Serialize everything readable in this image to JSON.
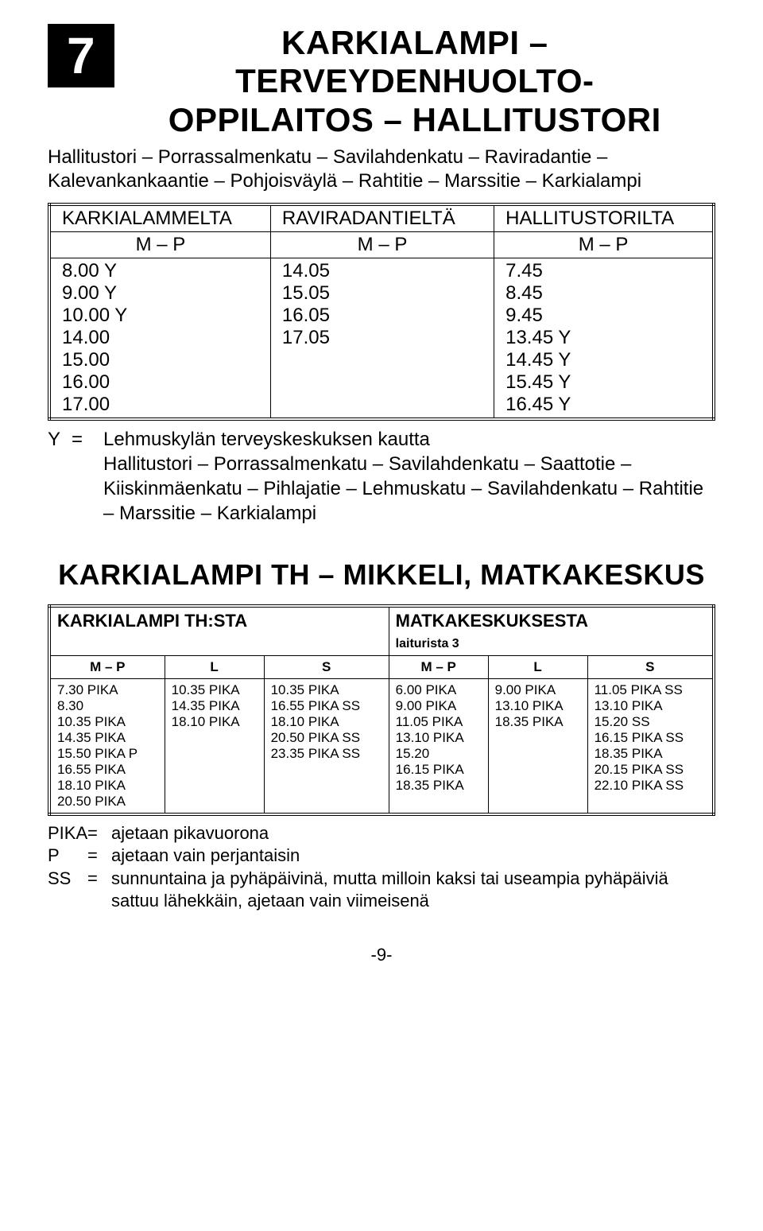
{
  "route": {
    "number": "7",
    "title_line1": "KARKIALAMPI – TERVEYDENHUOLTO-",
    "title_line2": "OPPILAITOS – HALLITUSTORI",
    "description": "Hallitustori – Porrassalmenkatu – Savilahdenkatu – Raviradantie – Kalevankankaantie – Pohjoisväylä – Rahtitie – Marssitie – Karkialampi"
  },
  "table1": {
    "headers": [
      "KARKIALAMMELTA",
      "RAVIRADANTIELTÄ",
      "HALLITUSTORILTA"
    ],
    "subheaders": [
      "M – P",
      "M – P",
      "M – P"
    ],
    "col1": [
      "8.00 Y",
      "9.00 Y",
      "10.00 Y",
      "14.00",
      "15.00",
      "16.00",
      "17.00"
    ],
    "col2": [
      "14.05",
      "15.05",
      "16.05",
      "17.05"
    ],
    "col3": [
      "7.45",
      "8.45",
      "9.45",
      "13.45 Y",
      "14.45 Y",
      "15.45 Y",
      "16.45 Y"
    ]
  },
  "note1": {
    "key": "Y",
    "eq": "=",
    "line1": "Lehmuskylän terveyskeskuksen kautta",
    "line2": "Hallitustori – Porrassalmenkatu – Savilahdenkatu – Saattotie – Kiiskinmäenkatu – Pihlajatie – Lehmuskatu – Savilahdenkatu – Rahtitie – Marssitie – Karkialampi"
  },
  "section2": {
    "title": "KARKIALAMPI TH – MIKKELI, MATKAKESKUS",
    "group1": "KARKIALAMPI TH:STA",
    "group2": "MATKAKESKUKSESTA",
    "group2_sub": "laiturista 3",
    "colheads": [
      "M – P",
      "L",
      "S",
      "M – P",
      "L",
      "S"
    ],
    "rows": {
      "c1": [
        "7.30 PIKA",
        "8.30",
        "10.35 PIKA",
        "14.35 PIKA",
        "15.50 PIKA P",
        "16.55 PIKA",
        "18.10 PIKA",
        "20.50 PIKA"
      ],
      "c2": [
        "10.35 PIKA",
        "14.35 PIKA",
        "18.10 PIKA"
      ],
      "c3": [
        "10.35 PIKA",
        "16.55 PIKA SS",
        "18.10 PIKA",
        "20.50 PIKA SS",
        "23.35 PIKA SS"
      ],
      "c4": [
        "6.00 PIKA",
        "9.00 PIKA",
        "11.05 PIKA",
        "13.10 PIKA",
        "15.20",
        "16.15 PIKA",
        "18.35 PIKA"
      ],
      "c5": [
        "9.00 PIKA",
        "13.10 PIKA",
        "18.35 PIKA"
      ],
      "c6": [
        "11.05 PIKA SS",
        "13.10 PIKA",
        "15.20 SS",
        "16.15 PIKA SS",
        "18.35 PIKA",
        "20.15 PIKA SS",
        "22.10 PIKA SS"
      ]
    }
  },
  "legend": [
    {
      "key": "PIKA",
      "eq": "=",
      "val": "ajetaan pikavuorona"
    },
    {
      "key": "P",
      "eq": "=",
      "val": "ajetaan vain perjantaisin"
    },
    {
      "key": "SS",
      "eq": "=",
      "val": "sunnuntaina ja pyhäpäivinä, mutta milloin kaksi tai useampia pyhäpäiviä sattuu lähekkäin, ajetaan vain viimeisenä"
    }
  ],
  "pagenum": "-9-"
}
